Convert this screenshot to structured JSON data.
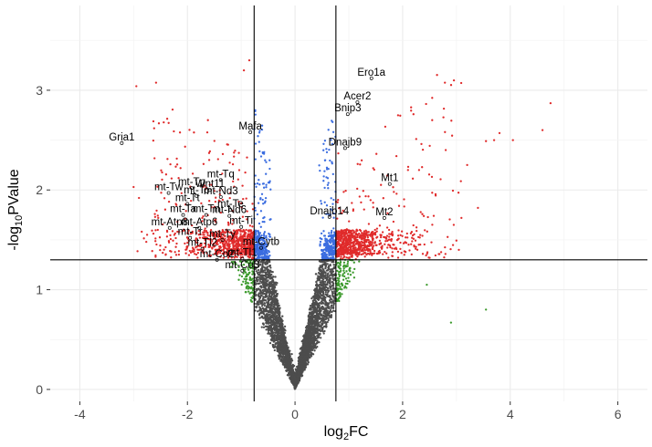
{
  "chart_data": {
    "type": "scatter",
    "xlabel": {
      "base": "log",
      "sub": "2",
      "rest": "FC"
    },
    "ylabel": {
      "base": "-log",
      "sub": "10",
      "rest": "PValue"
    },
    "xlim": [
      -4.55,
      6.55
    ],
    "ylim": [
      -0.12,
      3.85
    ],
    "x_ticks": [
      -4,
      -2,
      0,
      2,
      4,
      6
    ],
    "x_tick_labels": [
      "-4",
      "-2",
      "0",
      "2",
      "4",
      "6"
    ],
    "y_ticks": [
      0,
      1,
      2,
      3
    ],
    "y_tick_labels": [
      "0",
      "1",
      "2",
      "3"
    ],
    "grid": true,
    "background": "#ffffff",
    "colors": {
      "not_significant": "#4d4d4d",
      "significant_only": "#3c9a2d",
      "small_fold_change": "#3b6de0",
      "upregulated_or_downregulated": "#e02b2b",
      "grid": "#ebebeb",
      "threshold_line": "#000000"
    },
    "thresholds": {
      "log2fc_low": -0.76,
      "log2fc_high": 0.76,
      "neg_log10_p": 1.3
    },
    "labeled_points": [
      {
        "label": "Ero1a",
        "x": 1.42,
        "y": 3.12
      },
      {
        "label": "Acer2",
        "x": 1.16,
        "y": 2.88
      },
      {
        "label": "Bnip3",
        "x": 0.98,
        "y": 2.76
      },
      {
        "label": "Mafa",
        "x": -0.83,
        "y": 2.58
      },
      {
        "label": "Dnajb9",
        "x": 0.93,
        "y": 2.42
      },
      {
        "label": "Gria1",
        "x": -3.22,
        "y": 2.47
      },
      {
        "label": "mt-Tq",
        "x": -1.38,
        "y": 2.1
      },
      {
        "label": "mt-Tp",
        "x": -1.92,
        "y": 2.02
      },
      {
        "label": "Wnt11",
        "x": -1.58,
        "y": 2.0
      },
      {
        "label": "mt-Tw",
        "x": -2.35,
        "y": 1.97
      },
      {
        "label": "mt-Tc",
        "x": -1.83,
        "y": 1.94
      },
      {
        "label": "mt-Nd3",
        "x": -1.38,
        "y": 1.93
      },
      {
        "label": "mt-Tt",
        "x": -2.0,
        "y": 1.86
      },
      {
        "label": "mt-Te",
        "x": -1.2,
        "y": 1.8
      },
      {
        "label": "mt-Ta",
        "x": -2.08,
        "y": 1.75
      },
      {
        "label": "mt-Tn",
        "x": -1.65,
        "y": 1.75
      },
      {
        "label": "mt-Nd6",
        "x": -1.22,
        "y": 1.74
      },
      {
        "label": "Mt1",
        "x": 1.76,
        "y": 2.06
      },
      {
        "label": "Mt2",
        "x": 1.66,
        "y": 1.72
      },
      {
        "label": "Dnajb14",
        "x": 0.64,
        "y": 1.73
      },
      {
        "label": "mt-Atp8",
        "x": -2.33,
        "y": 1.62
      },
      {
        "label": "mt-Atp6",
        "x": -1.78,
        "y": 1.62
      },
      {
        "label": "mt-Ti",
        "x": -1.0,
        "y": 1.63
      },
      {
        "label": "mt-Tr",
        "x": -1.95,
        "y": 1.52
      },
      {
        "label": "mt-Ty",
        "x": -1.35,
        "y": 1.5
      },
      {
        "label": "mt-Tl2",
        "x": -1.72,
        "y": 1.41
      },
      {
        "label": "mt-Cytb",
        "x": -0.63,
        "y": 1.42
      },
      {
        "label": "mt-Co2",
        "x": -1.45,
        "y": 1.3
      },
      {
        "label": "mt-Tl1",
        "x": -0.98,
        "y": 1.31
      },
      {
        "label": "mt-Co3",
        "x": -0.98,
        "y": 1.19
      }
    ],
    "extreme_points": [
      {
        "x": 4.75,
        "y": 2.87
      },
      {
        "x": 4.6,
        "y": 2.6
      },
      {
        "x": 3.8,
        "y": 2.57
      },
      {
        "x": 3.7,
        "y": 2.5
      },
      {
        "x": 3.55,
        "y": 2.49
      },
      {
        "x": 4.05,
        "y": 2.5
      },
      {
        "x": -2.95,
        "y": 3.04
      },
      {
        "x": -3.0,
        "y": 2.03
      },
      {
        "x": -2.9,
        "y": 1.92
      },
      {
        "x": -2.75,
        "y": 1.55
      },
      {
        "x": -2.6,
        "y": 1.73
      },
      {
        "x": -2.55,
        "y": 1.6
      },
      {
        "x": 2.55,
        "y": 2.7
      },
      {
        "x": 2.8,
        "y": 2.4
      },
      {
        "x": 3.2,
        "y": 2.25
      },
      {
        "x": 3.4,
        "y": 1.82
      },
      {
        "x": 2.95,
        "y": 1.65
      },
      {
        "x": 2.45,
        "y": 1.05
      },
      {
        "x": 2.9,
        "y": 0.67
      },
      {
        "x": 3.55,
        "y": 0.8
      },
      {
        "x": 2.25,
        "y": 1.43
      },
      {
        "x": 2.1,
        "y": 2.2
      },
      {
        "x": -0.85,
        "y": 3.3
      },
      {
        "x": -0.95,
        "y": 3.2
      }
    ]
  }
}
